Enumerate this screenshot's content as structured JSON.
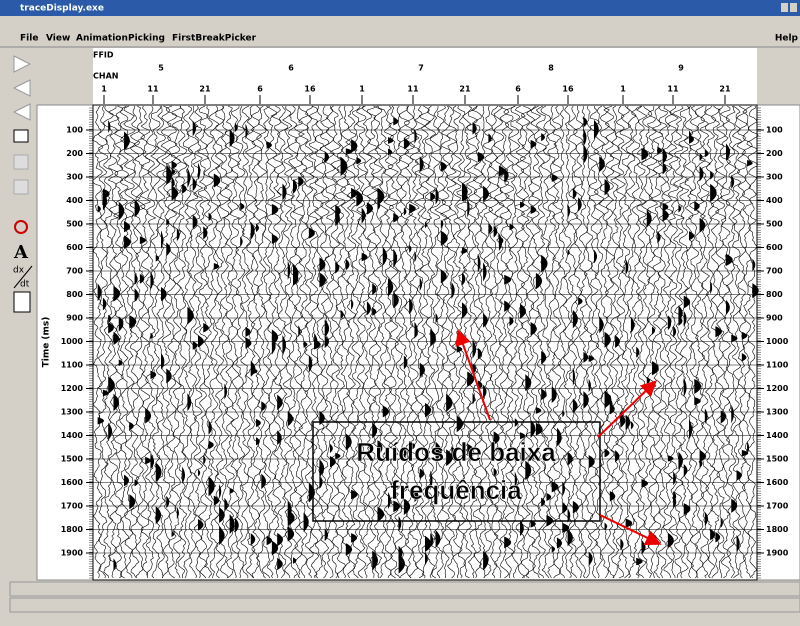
{
  "window": {
    "title": "traceDisplay.exe"
  },
  "menu": [
    "File",
    "View",
    "Animation",
    "Picking",
    "FirstBreakPicker"
  ],
  "help": "Help",
  "tools": {
    "text_tool": "A",
    "derivative_top": "dx",
    "derivative_bottom": "dt"
  },
  "header": {
    "ffid_label": "FFID",
    "chan_label": "CHAN",
    "ffid": [
      5,
      6,
      7,
      8,
      9
    ],
    "chan": [
      1,
      11,
      21,
      6,
      16,
      1,
      11,
      21,
      6,
      16,
      1,
      11,
      21
    ]
  },
  "time_axis": {
    "label": "Time (ms)",
    "ticks": [
      100,
      200,
      300,
      400,
      500,
      600,
      700,
      800,
      900,
      1000,
      1100,
      1200,
      1300,
      1400,
      1500,
      1600,
      1700,
      1800,
      1900
    ]
  },
  "annotation": {
    "lines": [
      "Ruídos de baixa",
      "frequência"
    ]
  }
}
